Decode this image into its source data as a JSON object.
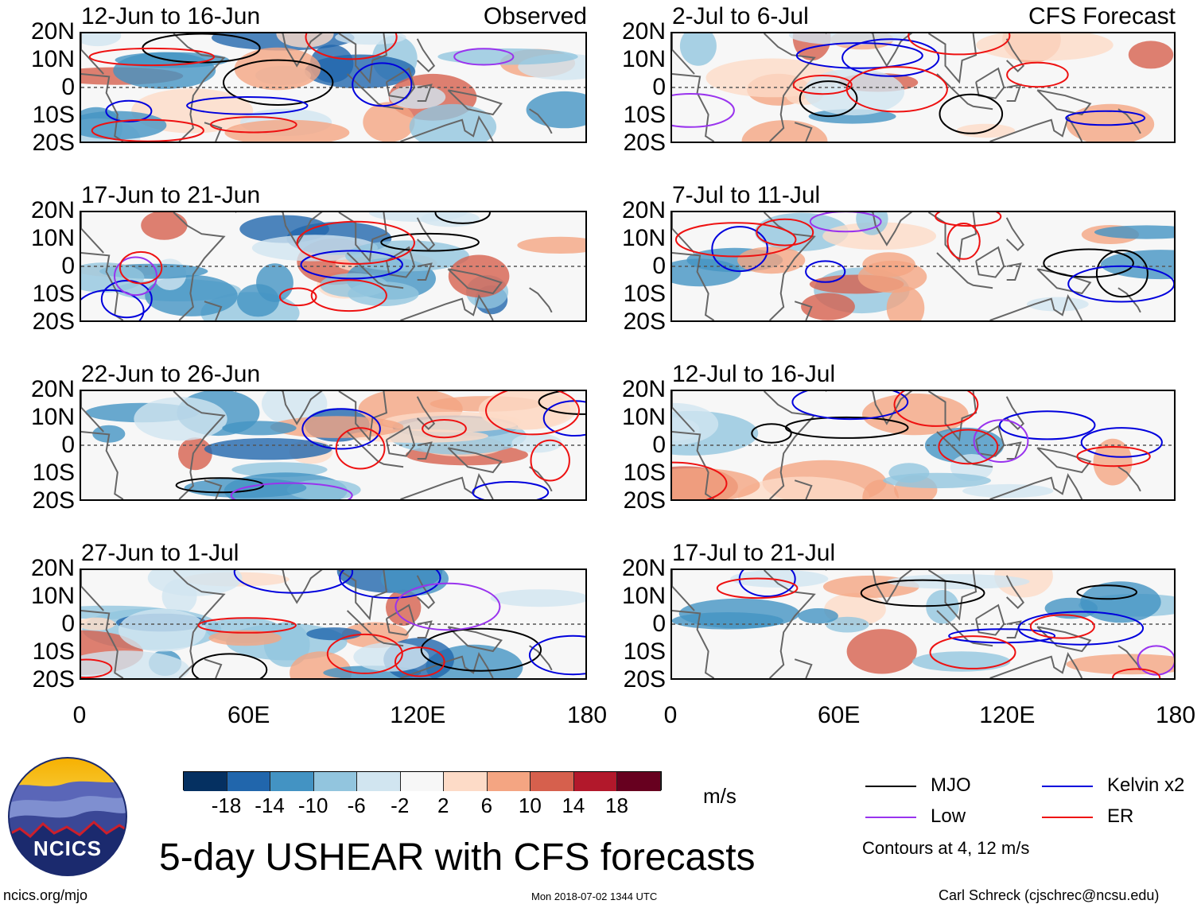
{
  "title": "5-day USHEAR with CFS forecasts",
  "units_label": "m/s",
  "footer": {
    "left": "ncics.org/mjo",
    "center": "Mon 2018-07-02 1344 UTC",
    "right": "Carl Schreck (cjschrec@ncsu.edu)"
  },
  "logo": {
    "text": "NCICS"
  },
  "column_labels": {
    "observed": "Observed",
    "forecast": "CFS Forecast"
  },
  "y_ticks": [
    "20N",
    "10N",
    "0",
    "10S",
    "20S"
  ],
  "x_ticks": [
    "0",
    "60E",
    "120E",
    "180"
  ],
  "panels": [
    {
      "period": "12-Jun to 16-Jun",
      "column": "observed"
    },
    {
      "period": "17-Jun to 21-Jun",
      "column": "observed"
    },
    {
      "period": "22-Jun to 26-Jun",
      "column": "observed"
    },
    {
      "period": "27-Jun to 1-Jul",
      "column": "observed"
    },
    {
      "period": "2-Jul to 6-Jul",
      "column": "forecast"
    },
    {
      "period": "7-Jul to 11-Jul",
      "column": "forecast"
    },
    {
      "period": "12-Jul to 16-Jul",
      "column": "forecast"
    },
    {
      "period": "17-Jul to 21-Jul",
      "column": "forecast"
    }
  ],
  "colorbar": {
    "colors": [
      "#053061",
      "#2166ac",
      "#4393c3",
      "#92c5de",
      "#d1e5f0",
      "#f7f7f7",
      "#fddbc7",
      "#f4a582",
      "#d6604d",
      "#b2182b",
      "#67001f"
    ],
    "labels": [
      "-18",
      "-14",
      "-10",
      "-6",
      "-2",
      "2",
      "6",
      "10",
      "14",
      "18"
    ]
  },
  "legend": {
    "items": [
      {
        "label": "MJO",
        "color": "#000000"
      },
      {
        "label": "Kelvin x2",
        "color": "#0000dd"
      },
      {
        "label": "Low",
        "color": "#9933ee"
      },
      {
        "label": "ER",
        "color": "#ee1111"
      }
    ],
    "note": "Contours at 4, 12 m/s"
  }
}
